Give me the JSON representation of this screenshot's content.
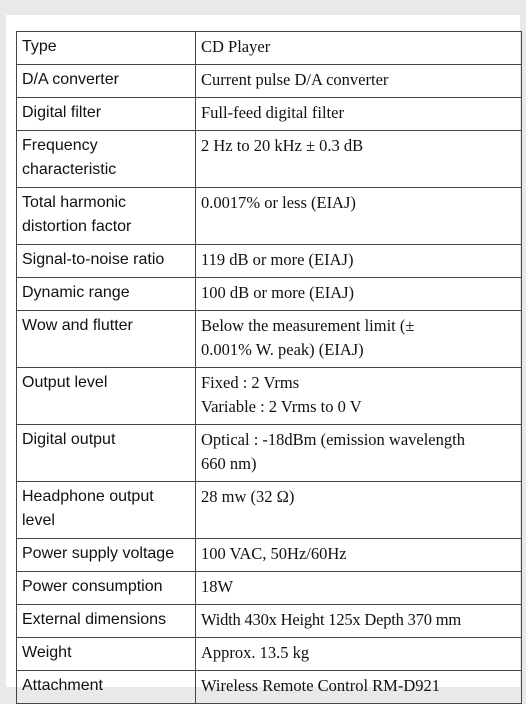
{
  "rows": [
    {
      "label": "Type",
      "value": "CD Player"
    },
    {
      "label": "D/A converter",
      "value": "Current pulse D/A converter"
    },
    {
      "label": "Digital filter",
      "value": "Full-feed digital filter"
    },
    {
      "label": "Frequency characteristic",
      "value": "2 Hz to 20 kHz ± 0.3 dB"
    },
    {
      "label": "Total harmonic distortion factor",
      "value": "0.0017% or less (EIAJ)"
    },
    {
      "label": "Signal-to-noise ratio",
      "value": "119 dB or more (EIAJ)"
    },
    {
      "label": "Dynamic range",
      "value": "100 dB or more (EIAJ)"
    },
    {
      "label": "Wow and flutter",
      "value_lines": [
        "Below the measurement limit (±",
        "0.001% W. peak) (EIAJ)"
      ]
    },
    {
      "label": "Output level",
      "value_lines": [
        "Fixed : 2 Vrms",
        "Variable : 2 Vrms to 0 V"
      ]
    },
    {
      "label": "Digital output",
      "value_lines": [
        "Optical : -18dBm (emission wavelength",
        "660 nm)"
      ]
    },
    {
      "label": "Headphone output level",
      "value": "28 mw (32 Ω)"
    },
    {
      "label": "Power supply voltage",
      "value": "100 VAC, 50Hz/60Hz"
    },
    {
      "label": "Power consumption",
      "value": "18W"
    },
    {
      "label": "External dimensions",
      "value": "Width 430x Height 125x Depth 370 mm"
    },
    {
      "label": "Weight",
      "value": "Approx. 13.5 kg"
    },
    {
      "label": "Attachment",
      "value": "Wireless Remote Control RM-D921"
    }
  ]
}
